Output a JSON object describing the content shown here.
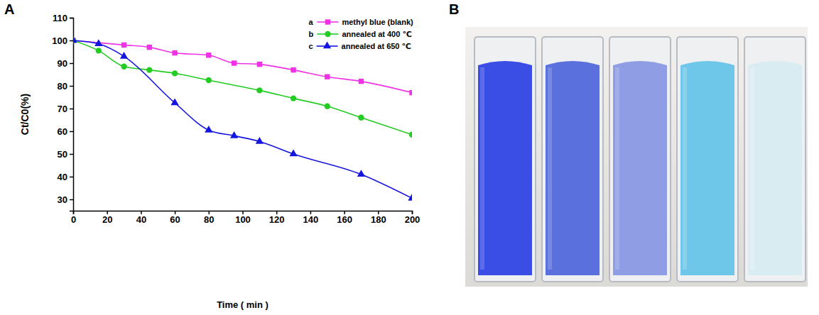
{
  "panel_labels": [
    "A",
    "B"
  ],
  "chart_data": {
    "type": "line",
    "x_label": "Time ( min )",
    "y_label": "Ct/C0(%)",
    "xlim": [
      0,
      200
    ],
    "xticks": [
      0,
      20,
      40,
      60,
      80,
      100,
      120,
      140,
      160,
      180,
      200
    ],
    "ylim": [
      25,
      110
    ],
    "yticks": [
      30,
      40,
      50,
      60,
      70,
      80,
      90,
      100,
      110
    ],
    "grid": false,
    "legend": "upper right",
    "series": [
      {
        "label": "a",
        "name": "methyl blue (blank)",
        "color": "#f032e6",
        "marker": "square",
        "x": [
          0,
          30,
          45,
          60,
          80,
          95,
          110,
          130,
          150,
          170,
          200
        ],
        "values": [
          100,
          98,
          97,
          94.5,
          93.5,
          90,
          89.5,
          87,
          84,
          82,
          77
        ]
      },
      {
        "label": "b",
        "name": "annealed at 400 ℃",
        "color": "#22cc22",
        "marker": "circle",
        "x": [
          0,
          15,
          30,
          45,
          60,
          80,
          110,
          130,
          150,
          170,
          200
        ],
        "values": [
          100,
          95.5,
          88.5,
          87,
          85.5,
          82.5,
          78,
          74.5,
          71,
          66,
          58.5
        ]
      },
      {
        "label": "c",
        "name": "annealed at 650 ℃",
        "color": "#1515e0",
        "marker": "triangle",
        "x": [
          0,
          15,
          30,
          60,
          80,
          95,
          110,
          130,
          170,
          200
        ],
        "values": [
          100,
          98.5,
          93,
          72.5,
          60.5,
          58,
          55.5,
          50,
          41,
          30.5
        ]
      }
    ]
  }
}
